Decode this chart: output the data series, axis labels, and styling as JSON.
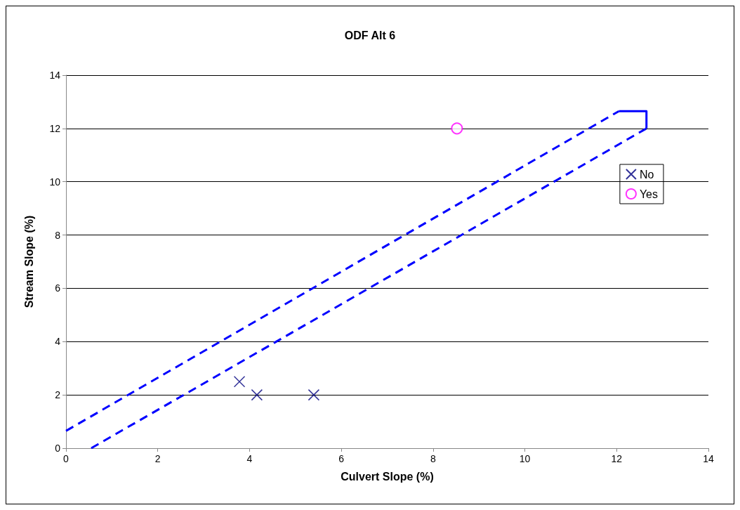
{
  "chart_data": {
    "type": "scatter",
    "title": "ODF Alt 6",
    "xlabel": "Culvert Slope (%)",
    "ylabel": "Stream Slope (%)",
    "xlim": [
      0,
      14
    ],
    "xticks": [
      0,
      2,
      4,
      6,
      8,
      10,
      12,
      14
    ],
    "ylim": [
      0,
      14
    ],
    "yticks": [
      0,
      2,
      4,
      6,
      8,
      10,
      12,
      14
    ],
    "grid": "y",
    "legend": "right",
    "series": [
      {
        "name": "No",
        "color": "#000080",
        "marker": "cross",
        "x": [
          3.78,
          4.16,
          5.4
        ],
        "values": [
          2.5,
          2,
          2
        ]
      },
      {
        "name": "Yes",
        "color": "#ff00ff",
        "marker": "circle",
        "x": [
          8.52
        ],
        "values": [
          12
        ]
      },
      {
        "type": "line",
        "color": "#0000ff",
        "line_style": "dashed",
        "marker": "none",
        "x": [
          0,
          12.05
        ],
        "values": [
          0.65,
          12.65
        ]
      },
      {
        "type": "line",
        "color": "#0000ff",
        "line_style": "solid",
        "marker": "none",
        "x": [
          12.05,
          12.65,
          12.65
        ],
        "values": [
          12.65,
          12.65,
          12
        ]
      },
      {
        "type": "line",
        "color": "#0000ff",
        "line_style": "dashed",
        "marker": "none",
        "x": [
          0.55,
          12.65
        ],
        "values": [
          0,
          12
        ]
      }
    ]
  }
}
